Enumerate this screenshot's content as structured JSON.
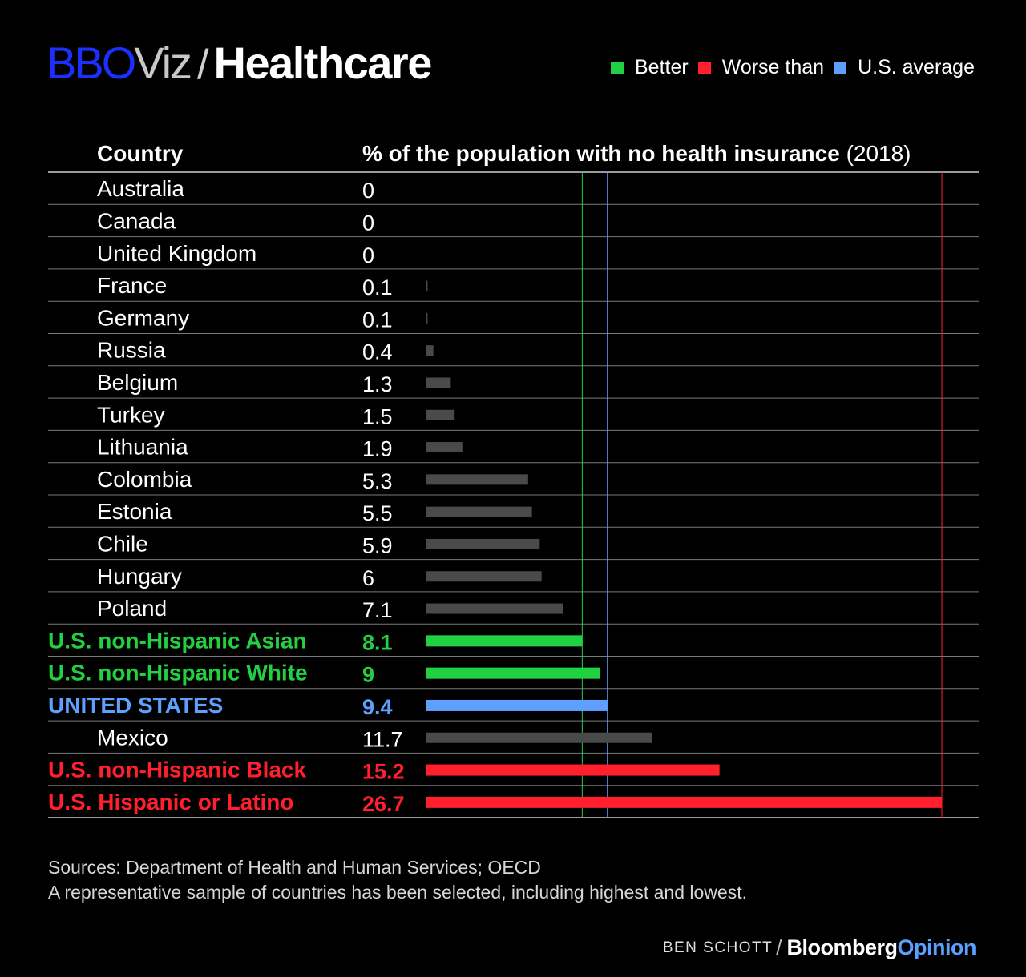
{
  "header": {
    "brand": "BBO",
    "brand_suffix": "Viz",
    "separator": "/",
    "topic": "Healthcare"
  },
  "legend": [
    {
      "label": "Better",
      "color": "#22d142"
    },
    {
      "label": "Worse than",
      "color": "#ff1f2d"
    },
    {
      "label": "U.S. average",
      "color": "#5fa0ff"
    }
  ],
  "table_header": {
    "country": "Country",
    "metric": "% of the population with no health insurance",
    "year": "(2018)"
  },
  "colors": {
    "neutral_bar": "#4a4a4a",
    "better": "#22d142",
    "worse": "#ff1f2d",
    "us_average": "#5fa0ff",
    "text": "#ffffff",
    "divider": "#7a7a7a"
  },
  "chart_data": {
    "type": "bar",
    "orientation": "horizontal",
    "title": "% of the population with no health insurance (2018)",
    "categories": [
      "Australia",
      "Canada",
      "United Kingdom",
      "France",
      "Germany",
      "Russia",
      "Belgium",
      "Turkey",
      "Lithuania",
      "Colombia",
      "Estonia",
      "Chile",
      "Hungary",
      "Poland",
      "U.S. non-Hispanic Asian",
      "U.S. non-Hispanic White",
      "UNITED STATES",
      "Mexico",
      "U.S. non-Hispanic Black",
      "U.S. Hispanic or Latino"
    ],
    "values": [
      0,
      0,
      0,
      0.1,
      0.1,
      0.4,
      1.3,
      1.5,
      1.9,
      5.3,
      5.5,
      5.9,
      6,
      7.1,
      8.1,
      9,
      9.4,
      11.7,
      15.2,
      26.7
    ],
    "value_labels": [
      "0",
      "0",
      "0",
      "0.1",
      "0.1",
      "0.4",
      "1.3",
      "1.5",
      "1.9",
      "5.3",
      "5.5",
      "5.9",
      "6",
      "7.1",
      "8.1",
      "9",
      "9.4",
      "11.7",
      "15.2",
      "26.7"
    ],
    "status": [
      "neutral",
      "neutral",
      "neutral",
      "neutral",
      "neutral",
      "neutral",
      "neutral",
      "neutral",
      "neutral",
      "neutral",
      "neutral",
      "neutral",
      "neutral",
      "neutral",
      "better",
      "better",
      "us",
      "neutral",
      "worse",
      "worse"
    ],
    "reference_lines": [
      {
        "value": 8.1,
        "status": "better"
      },
      {
        "value": 9.4,
        "status": "us"
      },
      {
        "value": 26.7,
        "status": "worse"
      }
    ],
    "xlim": [
      0,
      26.7
    ]
  },
  "footer": {
    "sources": "Sources: Department of Health and Human Services; OECD",
    "note": "A representative sample of countries has been selected, including highest and lowest.",
    "author": "BEN SCHOTT",
    "credit_slash": "/",
    "publisher": "Bloomberg",
    "publisher_suffix": "Opinion"
  }
}
